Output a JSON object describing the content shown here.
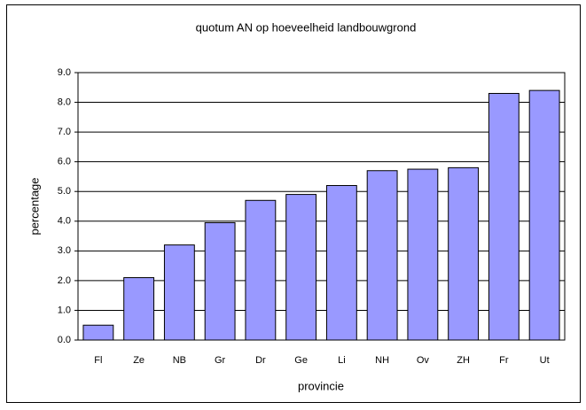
{
  "chart_data": {
    "type": "bar",
    "title": "quotum AN  op hoeveelheid landbouwgrond",
    "x_label": "provincie",
    "y_label": "percentage",
    "categories": [
      "Fl",
      "Ze",
      "NB",
      "Gr",
      "Dr",
      "Ge",
      "Li",
      "NH",
      "Ov",
      "ZH",
      "Fr",
      "Ut"
    ],
    "values": [
      0.5,
      2.1,
      3.2,
      3.95,
      4.7,
      4.9,
      5.2,
      5.7,
      5.75,
      5.8,
      8.3,
      8.4
    ],
    "color": "#9999ff",
    "ylim": [
      0,
      9
    ],
    "yticks": [
      {
        "value": 0,
        "label": "0.0"
      },
      {
        "value": 1,
        "label": "1.0"
      },
      {
        "value": 2,
        "label": "2.0"
      },
      {
        "value": 3,
        "label": "3.0"
      },
      {
        "value": 4,
        "label": "4.0"
      },
      {
        "value": 5,
        "label": "5.0"
      },
      {
        "value": 6,
        "label": "6.0"
      },
      {
        "value": 7,
        "label": "7.0"
      },
      {
        "value": 8,
        "label": "8.0"
      },
      {
        "value": 9,
        "label": "9.0"
      }
    ],
    "grid": true
  }
}
